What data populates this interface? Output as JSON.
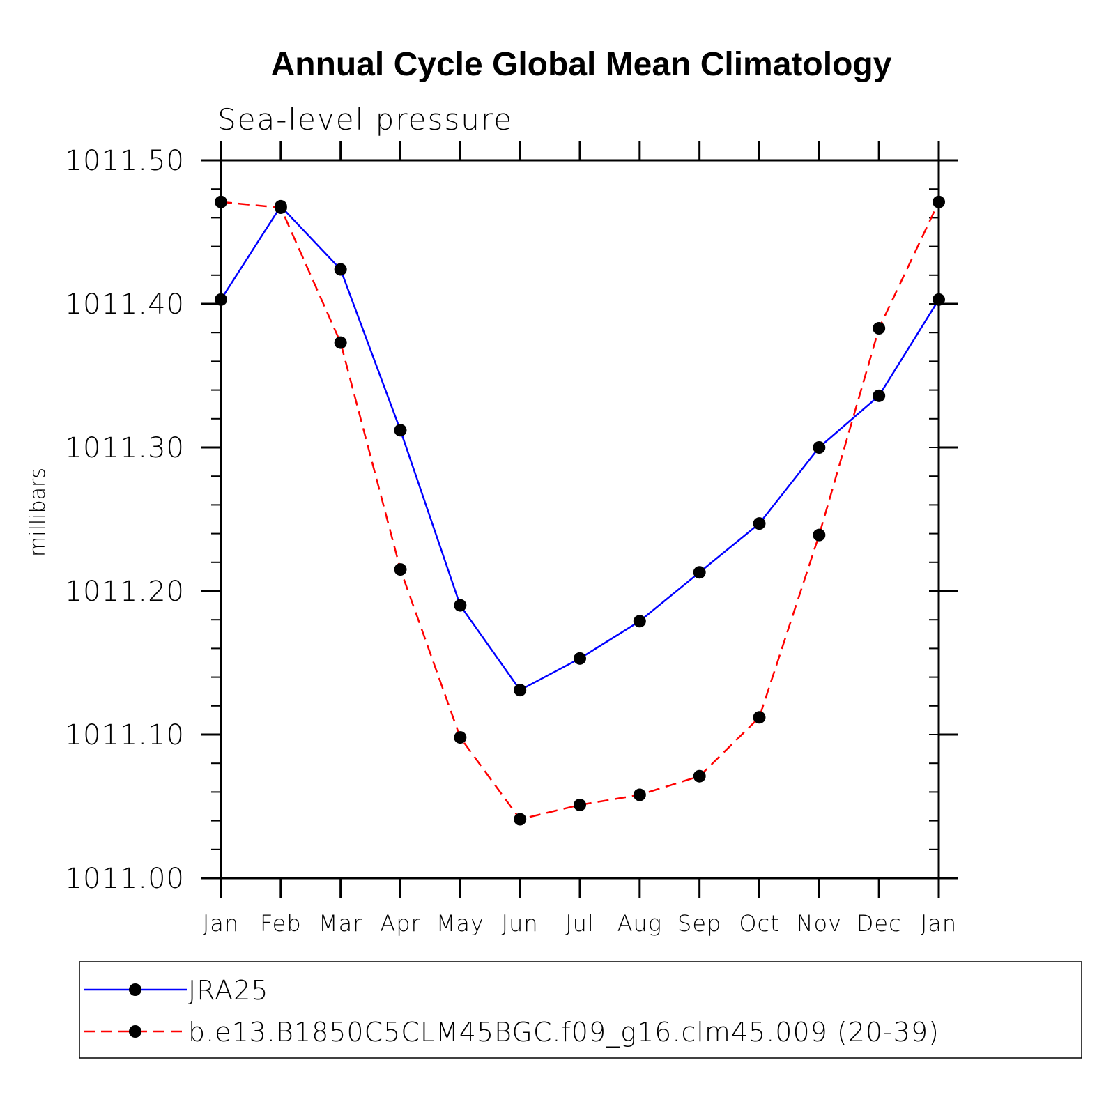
{
  "chart_data": {
    "type": "line",
    "title": "Annual Cycle Global Mean Climatology",
    "subtitle": "Sea-level pressure",
    "xlabel": "",
    "ylabel": "millibars",
    "categories": [
      "Jan",
      "Feb",
      "Mar",
      "Apr",
      "May",
      "Jun",
      "Jul",
      "Aug",
      "Sep",
      "Oct",
      "Nov",
      "Dec",
      "Jan"
    ],
    "ylim": [
      1011.0,
      1011.5
    ],
    "yticks": [
      "1011.00",
      "1011.10",
      "1011.20",
      "1011.30",
      "1011.40",
      "1011.50"
    ],
    "ytick_values": [
      1011.0,
      1011.1,
      1011.2,
      1011.3,
      1011.4,
      1011.5
    ],
    "yminor_step": 0.02,
    "legend_position": "bottom",
    "series": [
      {
        "name": "JRA25",
        "color": "#0000ff",
        "dash": "solid",
        "values": [
          1011.403,
          1011.468,
          1011.424,
          1011.312,
          1011.19,
          1011.131,
          1011.153,
          1011.179,
          1011.213,
          1011.247,
          1011.3,
          1011.336,
          1011.403
        ]
      },
      {
        "name": "b.e13.B1850C5CLM45BGC.f09_g16.clm45.009 (20-39)",
        "color": "#ff0000",
        "dash": "dashed",
        "values": [
          1011.471,
          1011.467,
          1011.373,
          1011.215,
          1011.098,
          1011.041,
          1011.051,
          1011.058,
          1011.071,
          1011.112,
          1011.239,
          1011.383,
          1011.471
        ]
      }
    ]
  }
}
